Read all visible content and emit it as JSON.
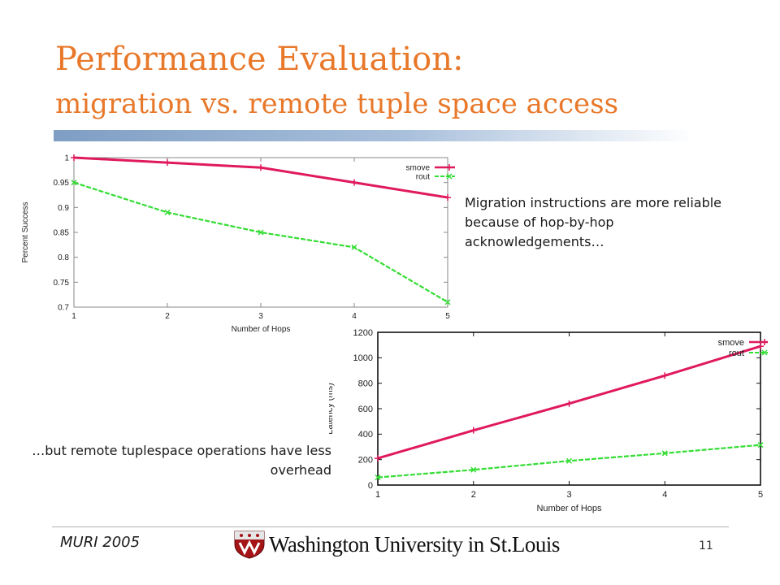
{
  "slide": {
    "title_line1": "Performance Evaluation:",
    "title_line2": "migration vs. remote tuple space access",
    "note_top": "Migration instructions are more reliable because of hop-by-hop acknowledgements…",
    "note_bottom": "…but remote tuplespace operations have less overhead",
    "footer_left": "MURI 2005",
    "logo_text": "Washington University in St.Louis",
    "page_number": "11"
  },
  "colors": {
    "title": "#e8782a",
    "smove": "#e0195f",
    "rout": "#33dd33",
    "rule": "#7f9ec4"
  },
  "chart_data": [
    {
      "type": "line",
      "xlabel": "Number of Hops",
      "ylabel": "Percent Success",
      "x": [
        1,
        2,
        3,
        4,
        5
      ],
      "xticks": [
        "1",
        "2",
        "3",
        "4",
        "5"
      ],
      "yticks": [
        "0.7",
        "0.75",
        "0.8",
        "0.85",
        "0.9",
        "0.95",
        "1"
      ],
      "xlim": [
        1,
        5
      ],
      "ylim": [
        0.7,
        1.0
      ],
      "legend": "top-right",
      "series": [
        {
          "name": "smove",
          "values": [
            1.0,
            0.99,
            0.98,
            0.95,
            0.92
          ]
        },
        {
          "name": "rout",
          "values": [
            0.95,
            0.89,
            0.85,
            0.82,
            0.71
          ]
        }
      ]
    },
    {
      "type": "line",
      "xlabel": "Number of Hops",
      "ylabel": "Latency (ms)",
      "x": [
        1,
        2,
        3,
        4,
        5
      ],
      "xticks": [
        "1",
        "2",
        "3",
        "4",
        "5"
      ],
      "yticks": [
        "0",
        "200",
        "400",
        "600",
        "800",
        "1000",
        "1200"
      ],
      "xlim": [
        1,
        5
      ],
      "ylim": [
        0,
        1200
      ],
      "legend": "top-right",
      "series": [
        {
          "name": "smove",
          "values": [
            210,
            430,
            640,
            860,
            1090
          ]
        },
        {
          "name": "rout",
          "values": [
            60,
            120,
            190,
            250,
            315
          ]
        }
      ]
    }
  ]
}
